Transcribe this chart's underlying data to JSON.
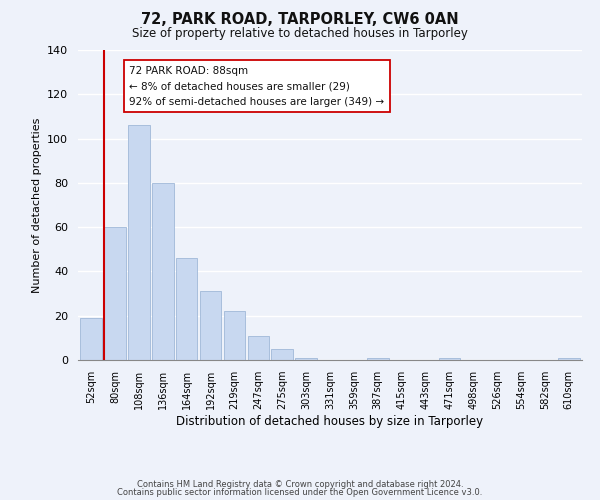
{
  "title": "72, PARK ROAD, TARPORLEY, CW6 0AN",
  "subtitle": "Size of property relative to detached houses in Tarporley",
  "xlabel": "Distribution of detached houses by size in Tarporley",
  "ylabel": "Number of detached properties",
  "bar_labels": [
    "52sqm",
    "80sqm",
    "108sqm",
    "136sqm",
    "164sqm",
    "192sqm",
    "219sqm",
    "247sqm",
    "275sqm",
    "303sqm",
    "331sqm",
    "359sqm",
    "387sqm",
    "415sqm",
    "443sqm",
    "471sqm",
    "498sqm",
    "526sqm",
    "554sqm",
    "582sqm",
    "610sqm"
  ],
  "bar_values": [
    19,
    60,
    106,
    80,
    46,
    31,
    22,
    11,
    5,
    1,
    0,
    0,
    1,
    0,
    0,
    1,
    0,
    0,
    0,
    0,
    1
  ],
  "bar_color": "#c8d8f0",
  "bar_edge_color": "#a0b8d8",
  "ylim": [
    0,
    140
  ],
  "yticks": [
    0,
    20,
    40,
    60,
    80,
    100,
    120,
    140
  ],
  "vline_x": 1,
  "vline_color": "#cc0000",
  "annotation_title": "72 PARK ROAD: 88sqm",
  "annotation_line1": "← 8% of detached houses are smaller (29)",
  "annotation_line2": "92% of semi-detached houses are larger (349) →",
  "annotation_box_color": "#ffffff",
  "annotation_box_edge": "#cc0000",
  "footer_line1": "Contains HM Land Registry data © Crown copyright and database right 2024.",
  "footer_line2": "Contains public sector information licensed under the Open Government Licence v3.0.",
  "background_color": "#eef2fa"
}
